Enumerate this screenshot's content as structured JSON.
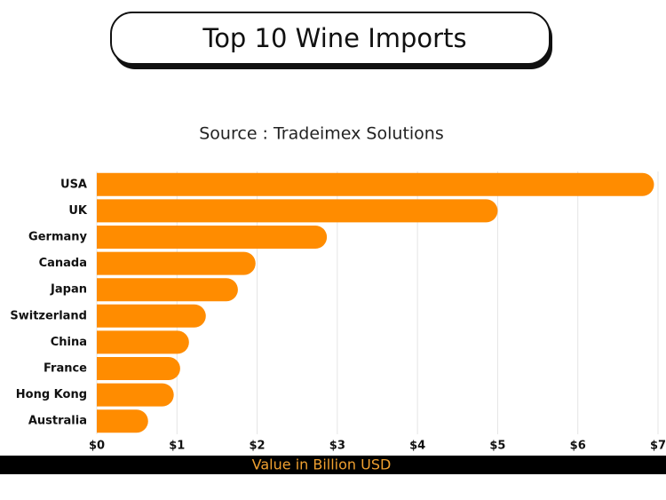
{
  "chart_data": {
    "type": "bar",
    "title": "Top 10 Wine Imports",
    "subtitle": "Source : Tradeimex Solutions",
    "x_label": "Value in Billion USD",
    "categories": [
      "USA",
      "UK",
      "Germany",
      "Canada",
      "Japan",
      "Switzerland",
      "China",
      "France",
      "Hong Kong",
      "Australia"
    ],
    "values": [
      6.95,
      5.0,
      2.87,
      1.98,
      1.76,
      1.36,
      1.15,
      1.04,
      0.96,
      0.64
    ],
    "color": "#ff8c00",
    "xlim": [
      0,
      7
    ],
    "xticks": [
      {
        "value": 0,
        "label": "$0"
      },
      {
        "value": 1,
        "label": "$1"
      },
      {
        "value": 2,
        "label": "$2"
      },
      {
        "value": 3,
        "label": "$3"
      },
      {
        "value": 4,
        "label": "$4"
      },
      {
        "value": 5,
        "label": "$5"
      },
      {
        "value": 6,
        "label": "$6"
      },
      {
        "value": 7,
        "label": "$7"
      }
    ],
    "grid": true
  }
}
